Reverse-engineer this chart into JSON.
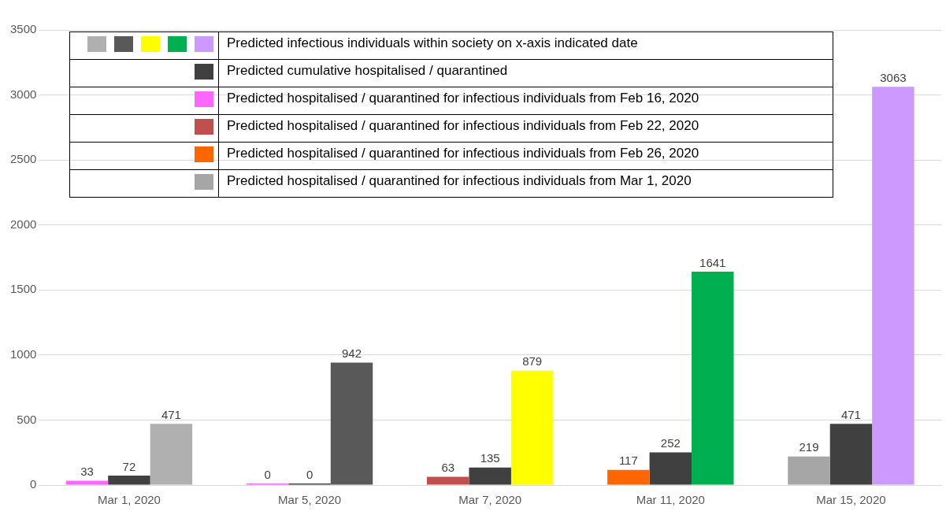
{
  "chart_data": {
    "type": "bar",
    "categories": [
      "Mar 1, 2020",
      "Mar 5, 2020",
      "Mar 7, 2020",
      "Mar 11, 2020",
      "Mar 15, 2020"
    ],
    "series": [
      {
        "name": "Predicted hospitalised / quarantined for infectious individuals from Feb 16, 2020",
        "color": "#ff66ff",
        "values": [
          33,
          0,
          null,
          null,
          null
        ]
      },
      {
        "name": "Predicted hospitalised / quarantined for infectious individuals from Feb 22, 2020",
        "color": "#c0504d",
        "values": [
          null,
          null,
          63,
          null,
          null
        ]
      },
      {
        "name": "Predicted hospitalised / quarantined for infectious individuals from Feb 26, 2020",
        "color": "#ff6600",
        "values": [
          null,
          null,
          null,
          117,
          null
        ]
      },
      {
        "name": "Predicted hospitalised / quarantined for infectious individuals from Mar 1, 2020",
        "color": "#a6a6a6",
        "values": [
          null,
          null,
          null,
          null,
          219
        ]
      },
      {
        "name": "Predicted cumulative hospitalised / quarantined",
        "color": "#404040",
        "values": [
          72,
          0,
          135,
          252,
          471
        ]
      },
      {
        "name": "Predicted infectious individuals within society on x-axis indicated date",
        "colors": [
          "#b0b0b0",
          "#595959",
          "#ffff00",
          "#00b050",
          "#cc99ff"
        ],
        "values": [
          471,
          942,
          879,
          1641,
          3063
        ]
      }
    ],
    "ylim": [
      0,
      3500
    ],
    "yticks": [
      0,
      500,
      1000,
      1500,
      2000,
      2500,
      3000,
      3500
    ],
    "grid": "y",
    "legend": "top left",
    "data_labels": true
  }
}
